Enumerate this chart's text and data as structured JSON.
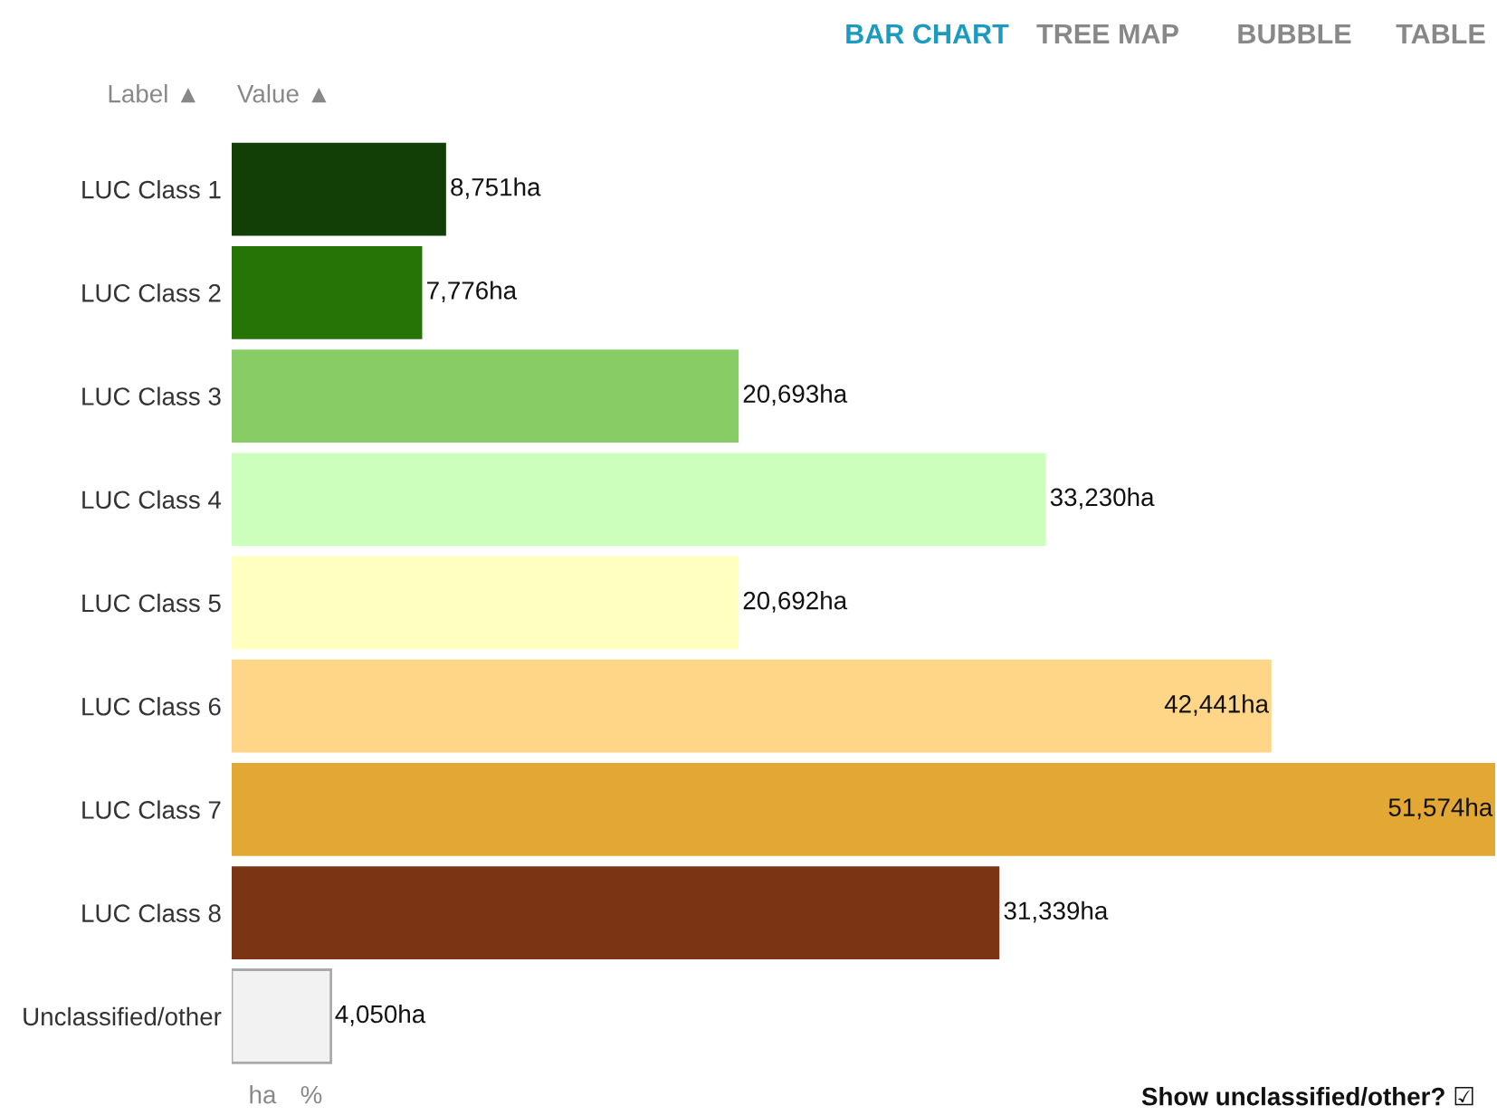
{
  "chart_data": {
    "type": "bar",
    "orientation": "horizontal",
    "categories": [
      "LUC Class 1",
      "LUC Class 2",
      "LUC Class 3",
      "LUC Class 4",
      "LUC Class 5",
      "LUC Class 6",
      "LUC Class 7",
      "LUC Class 8",
      "Unclassified/other"
    ],
    "values": [
      8751,
      7776,
      20693,
      33230,
      20692,
      42441,
      51574,
      31339,
      4050
    ],
    "colors": [
      "#123f05",
      "#267306",
      "#88cc66",
      "#ccffbb",
      "#ffffc0",
      "#ffd588",
      "#e3a833",
      "#7b3514",
      "#f2f2f2"
    ],
    "value_labels": [
      "8,751ha",
      "7,776ha",
      "20,693ha",
      "33,230ha",
      "20,692ha",
      "42,441ha",
      "51,574ha",
      "31,339ha",
      "4,050ha"
    ],
    "annotations": [
      "BAR CHART",
      "TREE MAP",
      "BUBBLE",
      "TABLE",
      "Label ▲",
      "Value ▲",
      "ha",
      "%",
      "Show unclassified/other? ☑"
    ],
    "legend": false,
    "grid": false
  }
}
